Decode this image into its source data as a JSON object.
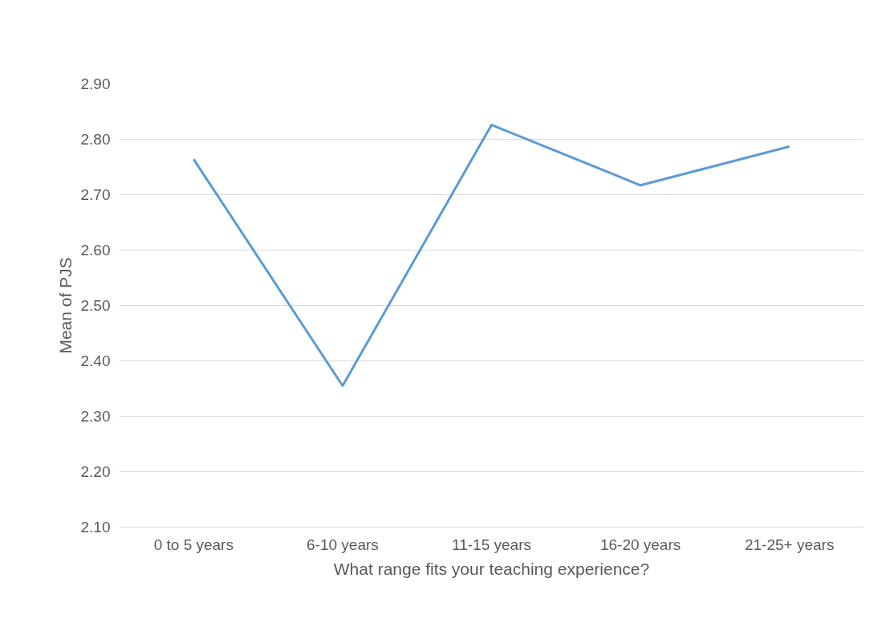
{
  "chart_data": {
    "type": "line",
    "xlabel": "What range fits your teaching experience?",
    "ylabel": "Mean of PJS",
    "categories": [
      "0 to 5 years",
      "6-10 years",
      "11-15 years",
      "16-20 years",
      "21-25+ years"
    ],
    "series": [
      {
        "color": "#5b9bd5",
        "values": [
          2.764,
          2.355,
          2.826,
          2.717,
          2.787
        ]
      }
    ],
    "ylim": [
      2.1,
      2.9
    ],
    "yticks": [
      {
        "value": 2.1,
        "label": "2.10"
      },
      {
        "value": 2.2,
        "label": "2.20"
      },
      {
        "value": 2.3,
        "label": "2.30"
      },
      {
        "value": 2.4,
        "label": "2.40"
      },
      {
        "value": 2.5,
        "label": "2.50"
      },
      {
        "value": 2.6,
        "label": "2.60"
      },
      {
        "value": 2.7,
        "label": "2.70"
      },
      {
        "value": 2.8,
        "label": "2.80"
      },
      {
        "value": 2.9,
        "label": "2.90"
      }
    ],
    "grid": "y",
    "line_style": "solid"
  }
}
